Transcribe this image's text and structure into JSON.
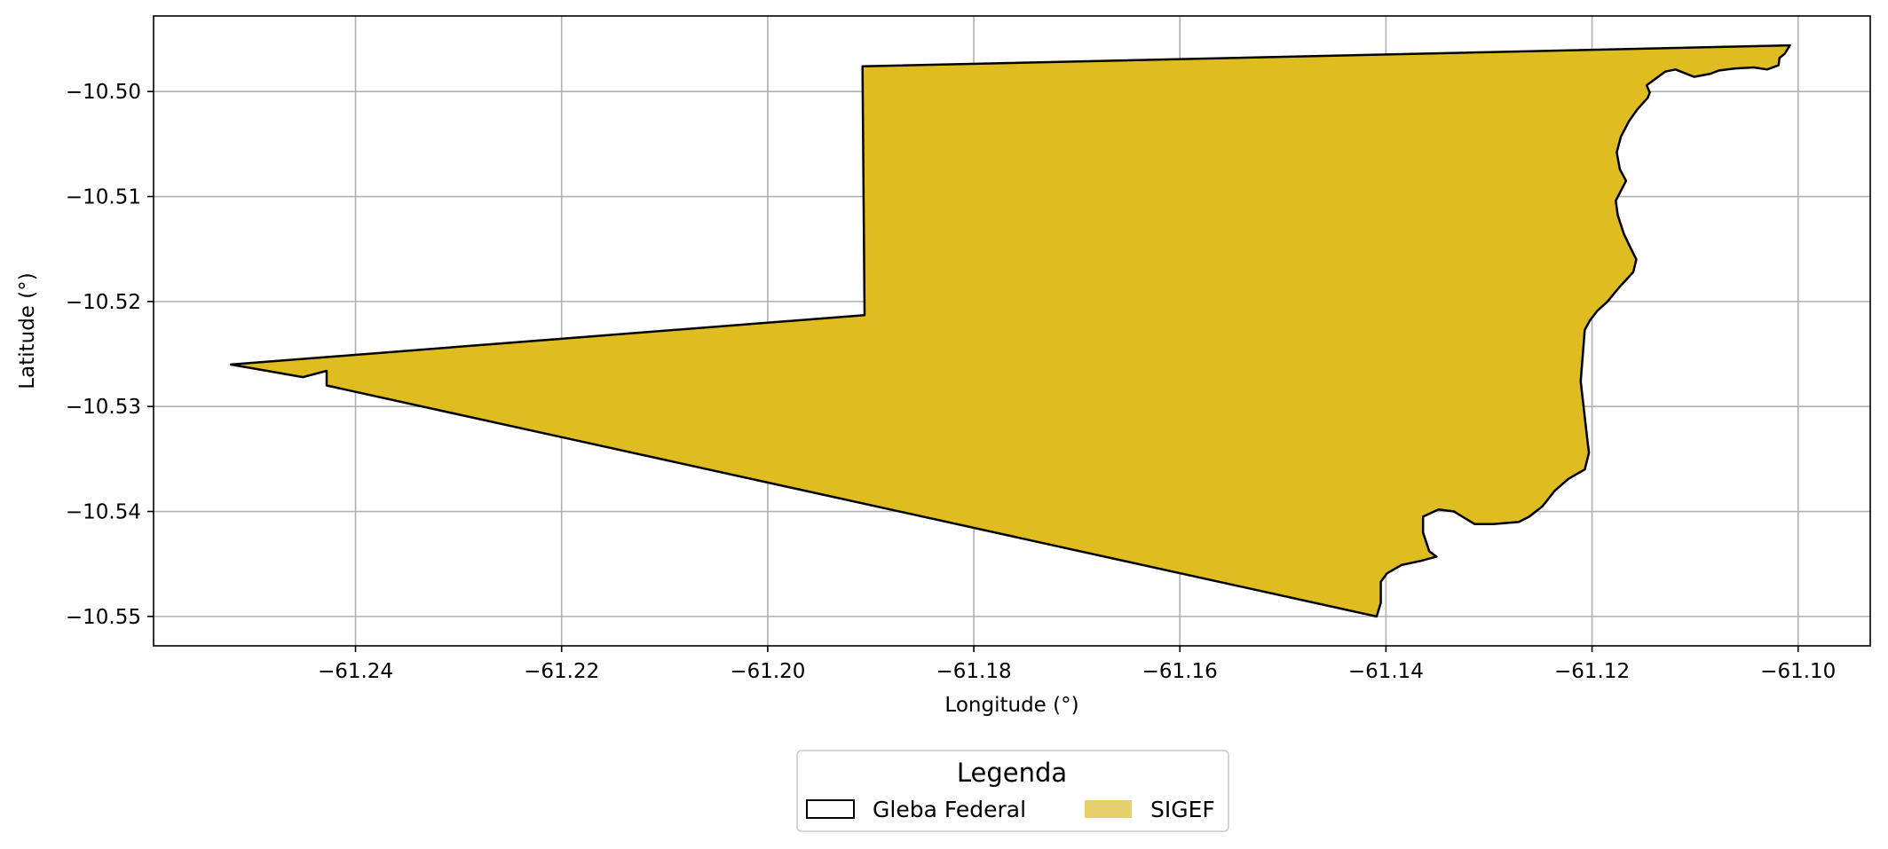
{
  "chart_data": {
    "type": "map",
    "xlabel": "Longitude (°)",
    "ylabel": "Latitude (°)",
    "xlim": [
      -61.2596,
      -61.093
    ],
    "ylim": [
      -10.5528,
      -10.4928
    ],
    "xticks": [
      -61.24,
      -61.22,
      -61.2,
      -61.18,
      -61.16,
      -61.14,
      -61.12,
      -61.1
    ],
    "xtick_labels": [
      "−61.24",
      "−61.22",
      "−61.20",
      "−61.18",
      "−61.16",
      "−61.14",
      "−61.12",
      "−61.10"
    ],
    "yticks": [
      -10.5,
      -10.51,
      -10.52,
      -10.53,
      -10.54,
      -10.55
    ],
    "ytick_labels": [
      "−10.50",
      "−10.51",
      "−10.52",
      "−10.53",
      "−10.54",
      "−10.55"
    ],
    "grid": true,
    "legend": {
      "title": "Legenda",
      "placement": "bottom-center",
      "items": [
        {
          "label": "Gleba Federal",
          "style": "outline",
          "color": "#000000"
        },
        {
          "label": "SIGEF",
          "style": "fill",
          "color": "#e6d06b"
        }
      ]
    },
    "polygon": {
      "fill": "#dfbc20",
      "stroke": "#000000",
      "coords": [
        [
          -61.1908,
          -10.4976
        ],
        [
          -61.1008,
          -10.4956
        ],
        [
          -61.1013,
          -10.4964
        ],
        [
          -61.1018,
          -10.4968
        ],
        [
          -61.1019,
          -10.4975
        ],
        [
          -61.103,
          -10.4979
        ],
        [
          -61.1043,
          -10.4977
        ],
        [
          -61.1062,
          -10.4978
        ],
        [
          -61.1077,
          -10.498
        ],
        [
          -61.1085,
          -10.4983
        ],
        [
          -61.1101,
          -10.4986
        ],
        [
          -61.1119,
          -10.4979
        ],
        [
          -61.1129,
          -10.4981
        ],
        [
          -61.1147,
          -10.4994
        ],
        [
          -61.1144,
          -10.5001
        ],
        [
          -61.1146,
          -10.5006
        ],
        [
          -61.1156,
          -10.5017
        ],
        [
          -61.1164,
          -10.5028
        ],
        [
          -61.1172,
          -10.5043
        ],
        [
          -61.1176,
          -10.5058
        ],
        [
          -61.1173,
          -10.5074
        ],
        [
          -61.1167,
          -10.5085
        ],
        [
          -61.1177,
          -10.5104
        ],
        [
          -61.1175,
          -10.5118
        ],
        [
          -61.1169,
          -10.5136
        ],
        [
          -61.1161,
          -10.5152
        ],
        [
          -61.1157,
          -10.516
        ],
        [
          -61.116,
          -10.5172
        ],
        [
          -61.1174,
          -10.5187
        ],
        [
          -61.1185,
          -10.52
        ],
        [
          -61.1195,
          -10.5209
        ],
        [
          -61.1202,
          -10.5218
        ],
        [
          -61.1207,
          -10.5227
        ],
        [
          -61.1211,
          -10.5276
        ],
        [
          -61.1204,
          -10.5336
        ],
        [
          -61.1203,
          -10.5344
        ],
        [
          -61.1207,
          -10.536
        ],
        [
          -61.1223,
          -10.5369
        ],
        [
          -61.1236,
          -10.538
        ],
        [
          -61.1248,
          -10.5395
        ],
        [
          -61.1261,
          -10.5405
        ],
        [
          -61.1271,
          -10.541
        ],
        [
          -61.1296,
          -10.5412
        ],
        [
          -61.1314,
          -10.5412
        ],
        [
          -61.1334,
          -10.54
        ],
        [
          -61.1349,
          -10.5398
        ],
        [
          -61.1364,
          -10.5405
        ],
        [
          -61.1364,
          -10.542
        ],
        [
          -61.1358,
          -10.5438
        ],
        [
          -61.1351,
          -10.5443
        ],
        [
          -61.1366,
          -10.5447
        ],
        [
          -61.1385,
          -10.5451
        ],
        [
          -61.1399,
          -10.5459
        ],
        [
          -61.1405,
          -10.5467
        ],
        [
          -61.1405,
          -10.5487
        ],
        [
          -61.1409,
          -10.55
        ],
        [
          -61.2428,
          -10.528
        ],
        [
          -61.2428,
          -10.5266
        ],
        [
          -61.2451,
          -10.5272
        ],
        [
          -61.2521,
          -10.526
        ],
        [
          -61.1906,
          -10.5213
        ]
      ]
    }
  }
}
